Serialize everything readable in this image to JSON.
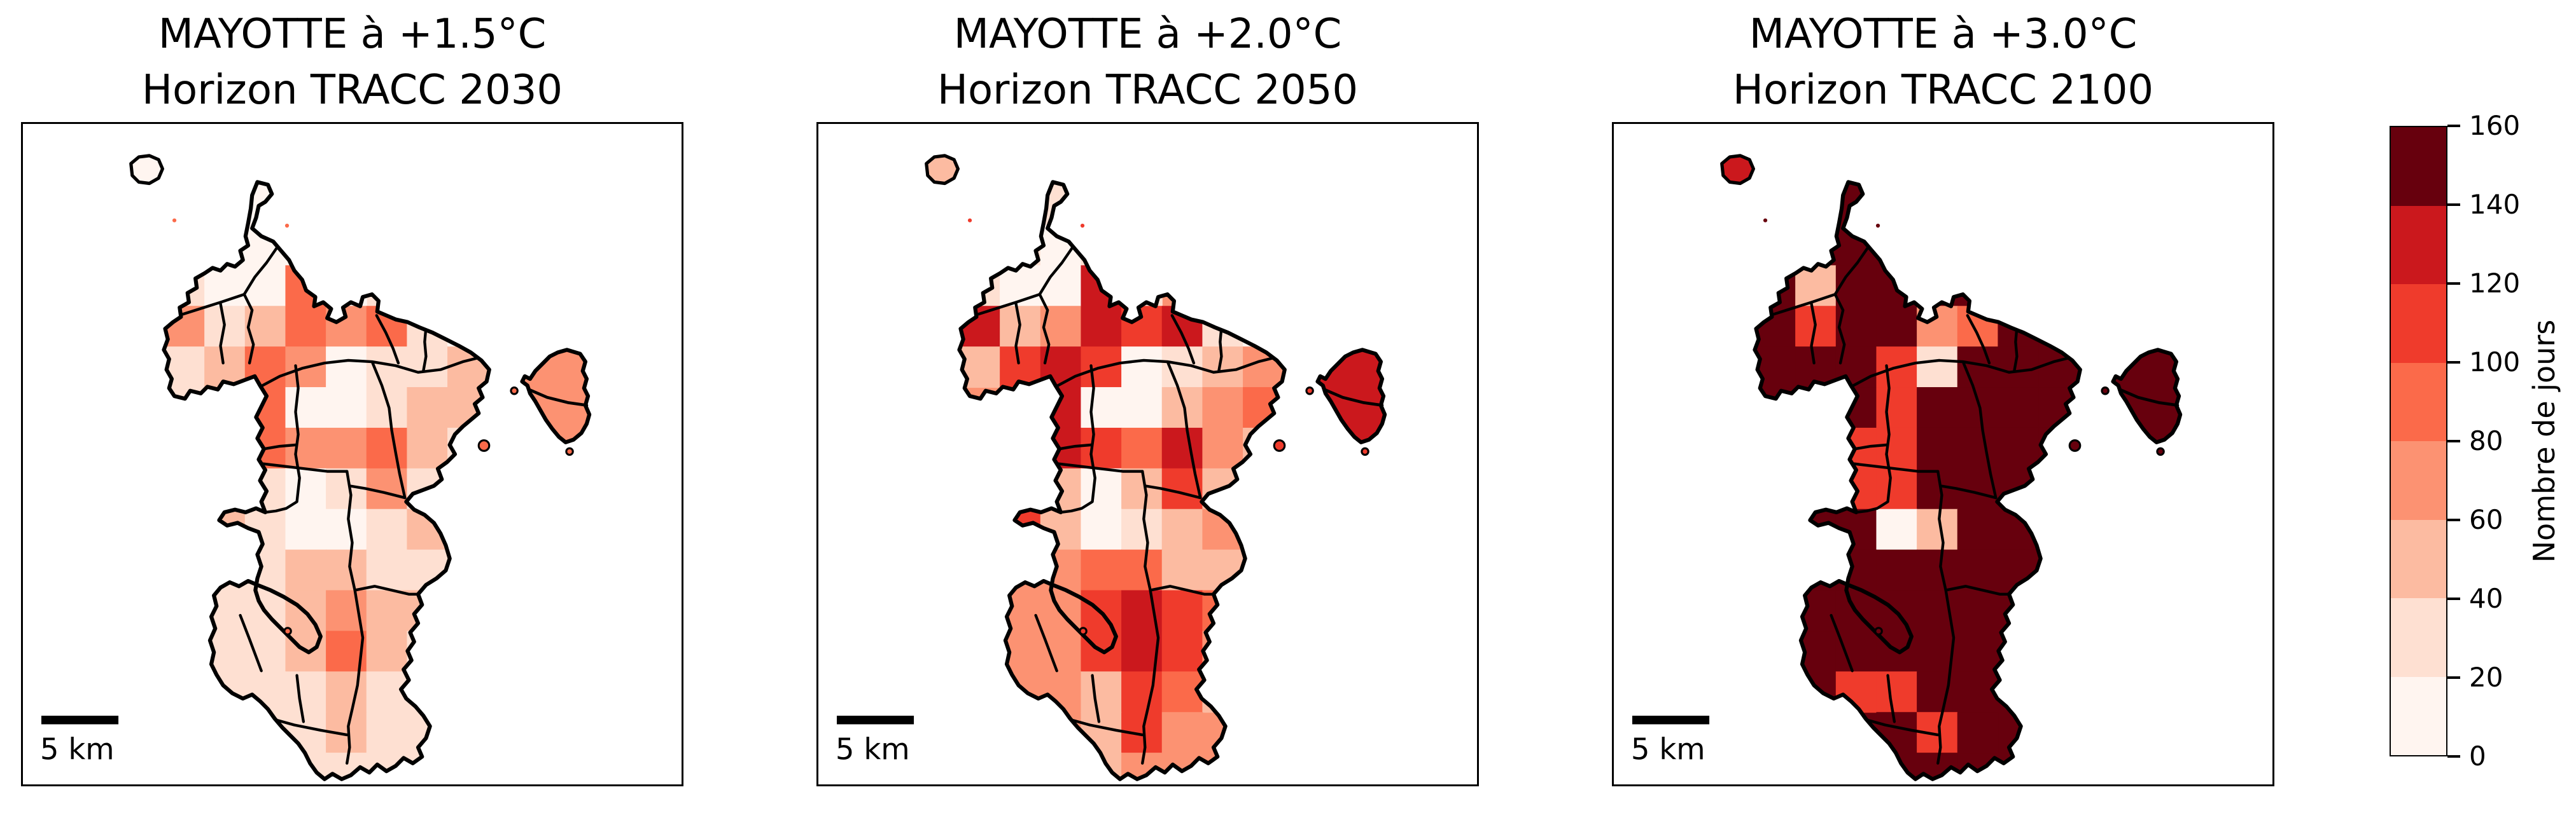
{
  "panels": [
    {
      "title_line1": "MAYOTTE à +1.5°C",
      "title_line2": "Horizon TRACC 2030",
      "scalebar_label": "5 km"
    },
    {
      "title_line1": "MAYOTTE à +2.0°C",
      "title_line2": "Horizon TRACC 2050",
      "scalebar_label": "5 km"
    },
    {
      "title_line1": "MAYOTTE à +3.0°C",
      "title_line2": "Horizon TRACC 2100",
      "scalebar_label": "5 km"
    }
  ],
  "colorbar": {
    "label": "Nombre de jours",
    "tick_values": [
      0,
      20,
      40,
      60,
      80,
      100,
      120,
      140,
      160
    ],
    "bin_edges": [
      0,
      20,
      40,
      60,
      80,
      100,
      120,
      140,
      160
    ],
    "bin_colors": [
      "#fff5f0",
      "#fee0d2",
      "#fcbba1",
      "#fc9272",
      "#fb6a4a",
      "#ef3b2c",
      "#cb181d",
      "#67000d"
    ]
  },
  "chart_data": {
    "type": "heatmap",
    "subtype": "choropleth-raster-maps",
    "region": "Mayotte",
    "panel_titles": [
      "MAYOTTE à +1.5°C — Horizon TRACC 2030",
      "MAYOTTE à +2.0°C — Horizon TRACC 2050",
      "MAYOTTE à +3.0°C — Horizon TRACC 2100"
    ],
    "colorbar_label": "Nombre de jours",
    "value_range": [
      0,
      160
    ],
    "bin_size": 20,
    "grid_cols": 9,
    "grid_rows": 15,
    "base_values": [
      30,
      70,
      150
    ],
    "petite_terre_values": [
      70,
      130,
      150
    ],
    "mtsamboro_islet_values": [
      10,
      50,
      130
    ],
    "small_islet_values": [
      90,
      110,
      150
    ],
    "grids": [
      [
        [
          0,
          0,
          10,
          0,
          0,
          0,
          0,
          0,
          0
        ],
        [
          0,
          10,
          10,
          10,
          0,
          0,
          0,
          0,
          0
        ],
        [
          30,
          10,
          10,
          90,
          10,
          0,
          0,
          0,
          0
        ],
        [
          70,
          30,
          50,
          90,
          70,
          90,
          30,
          10,
          0
        ],
        [
          30,
          50,
          90,
          70,
          10,
          30,
          30,
          50,
          0
        ],
        [
          0,
          10,
          90,
          10,
          10,
          30,
          50,
          50,
          0
        ],
        [
          0,
          0,
          90,
          70,
          70,
          90,
          50,
          30,
          0
        ],
        [
          0,
          0,
          30,
          10,
          30,
          70,
          30,
          0,
          0
        ],
        [
          0,
          50,
          30,
          10,
          10,
          30,
          50,
          0,
          0
        ],
        [
          0,
          0,
          30,
          50,
          50,
          30,
          30,
          0,
          0
        ],
        [
          0,
          30,
          30,
          50,
          70,
          50,
          50,
          0,
          0
        ],
        [
          0,
          0,
          30,
          50,
          90,
          50,
          30,
          0,
          0
        ],
        [
          0,
          0,
          30,
          30,
          50,
          30,
          30,
          0,
          0
        ],
        [
          0,
          0,
          0,
          30,
          50,
          30,
          0,
          0,
          0
        ],
        [
          0,
          0,
          0,
          30,
          30,
          0,
          0,
          0,
          0
        ]
      ],
      [
        [
          0,
          0,
          30,
          0,
          0,
          0,
          0,
          0,
          0
        ],
        [
          0,
          30,
          10,
          30,
          0,
          0,
          0,
          0,
          0
        ],
        [
          30,
          10,
          10,
          130,
          30,
          0,
          0,
          0,
          0
        ],
        [
          130,
          50,
          70,
          130,
          110,
          130,
          30,
          10,
          0
        ],
        [
          50,
          110,
          130,
          110,
          10,
          30,
          50,
          70,
          0
        ],
        [
          0,
          30,
          130,
          10,
          10,
          50,
          70,
          90,
          0
        ],
        [
          0,
          0,
          130,
          110,
          90,
          130,
          70,
          50,
          0
        ],
        [
          0,
          0,
          50,
          10,
          50,
          110,
          50,
          0,
          0
        ],
        [
          0,
          110,
          50,
          10,
          30,
          50,
          70,
          0,
          0
        ],
        [
          0,
          0,
          70,
          90,
          90,
          50,
          50,
          0,
          0
        ],
        [
          0,
          70,
          70,
          110,
          130,
          110,
          90,
          0,
          0
        ],
        [
          0,
          0,
          70,
          110,
          130,
          110,
          70,
          0,
          0
        ],
        [
          0,
          0,
          70,
          50,
          110,
          90,
          50,
          0,
          0
        ],
        [
          0,
          0,
          0,
          50,
          110,
          70,
          0,
          0,
          0
        ],
        [
          0,
          0,
          0,
          50,
          70,
          0,
          0,
          0,
          0
        ]
      ],
      [
        [
          0,
          0,
          150,
          0,
          0,
          0,
          0,
          0,
          0
        ],
        [
          0,
          150,
          150,
          150,
          0,
          0,
          0,
          0,
          0
        ],
        [
          150,
          50,
          150,
          150,
          150,
          0,
          0,
          0,
          0
        ],
        [
          150,
          110,
          150,
          150,
          70,
          90,
          150,
          150,
          0
        ],
        [
          150,
          150,
          150,
          110,
          30,
          150,
          150,
          150,
          0
        ],
        [
          0,
          150,
          150,
          110,
          150,
          150,
          150,
          150,
          0
        ],
        [
          0,
          0,
          110,
          110,
          150,
          150,
          150,
          150,
          0
        ],
        [
          0,
          0,
          110,
          110,
          150,
          150,
          150,
          0,
          0
        ],
        [
          0,
          150,
          150,
          10,
          50,
          150,
          150,
          0,
          0
        ],
        [
          0,
          0,
          150,
          150,
          150,
          150,
          150,
          0,
          0
        ],
        [
          0,
          150,
          150,
          150,
          150,
          150,
          150,
          0,
          0
        ],
        [
          0,
          0,
          150,
          150,
          150,
          150,
          150,
          0,
          0
        ],
        [
          0,
          0,
          110,
          110,
          150,
          150,
          150,
          0,
          0
        ],
        [
          0,
          0,
          0,
          150,
          110,
          150,
          0,
          0,
          0
        ],
        [
          0,
          0,
          0,
          150,
          150,
          0,
          0,
          0,
          0
        ]
      ]
    ]
  }
}
